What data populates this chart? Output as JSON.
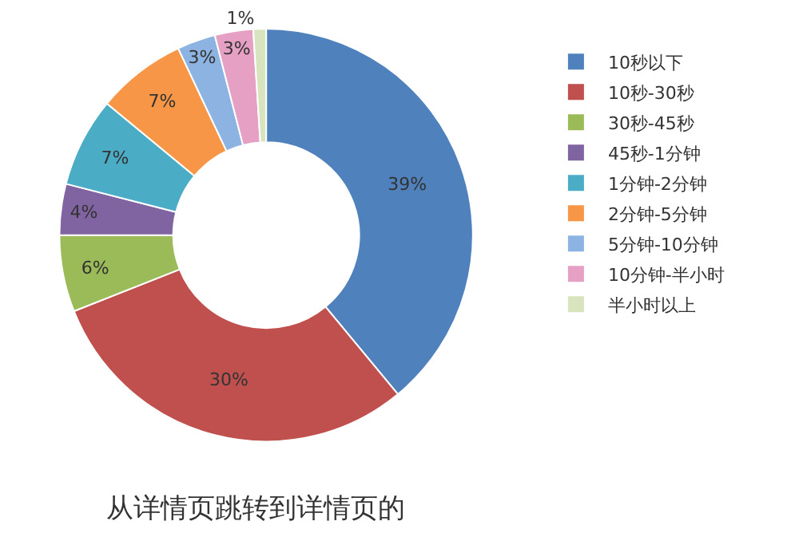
{
  "chart_data": {
    "type": "donut",
    "title": "从详情页跳转到详情页的",
    "categories": [
      "10秒以下",
      "10秒-30秒",
      "30秒-45秒",
      "45秒-1分钟",
      "1分钟-2分钟",
      "2分钟-5分钟",
      "5分钟-10分钟",
      "10分钟-半小时",
      "半小时以上"
    ],
    "values": [
      39,
      30,
      6,
      4,
      7,
      7,
      3,
      3,
      1
    ],
    "value_labels": [
      "39%",
      "30%",
      "6%",
      "4%",
      "7%",
      "7%",
      "3%",
      "3%",
      "1%"
    ],
    "colors": [
      "#4f81bd",
      "#c0504d",
      "#9bbb59",
      "#8064a2",
      "#4bacc6",
      "#f79646",
      "#8db3e2",
      "#e6a0c4",
      "#d7e4bd"
    ],
    "legend": "right"
  }
}
